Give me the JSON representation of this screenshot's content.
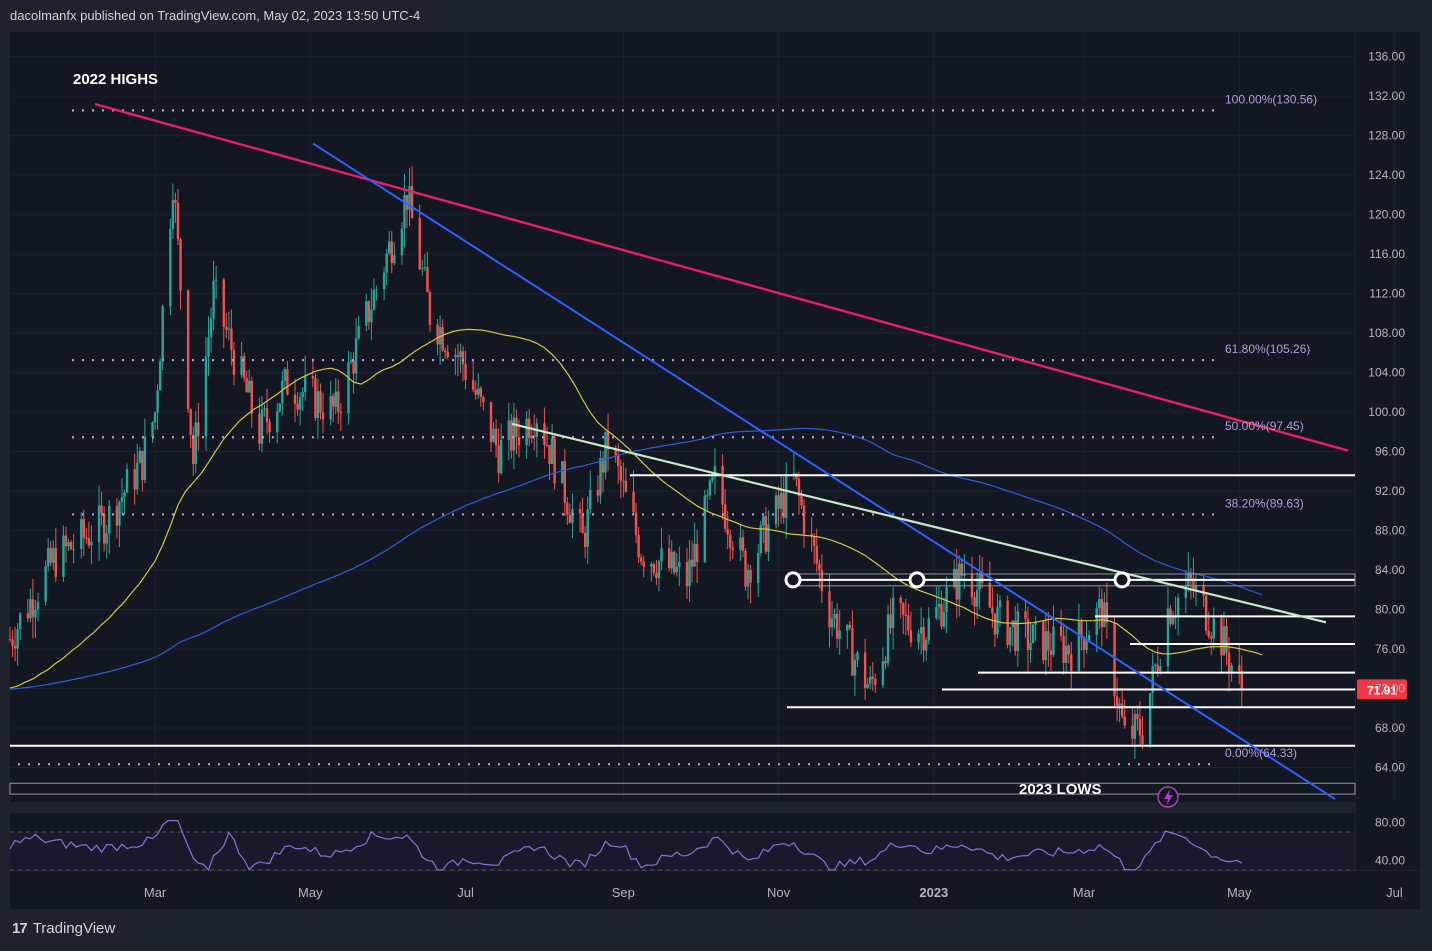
{
  "header": {
    "text": "dacolmanfx published on TradingView.com, May 02, 2023 13:50 UTC-4"
  },
  "footer": {
    "logo": "17",
    "brand": "TradingView"
  },
  "colors": {
    "background": "#131722",
    "frame": "#1e222d",
    "up": "#26a69a",
    "down": "#ef5350",
    "fib": "#b39ddb",
    "pink_trend": "#e91e63",
    "blue_trend": "#2962ff",
    "green_trend": "#c8e6c9",
    "ma50": "#d4c840",
    "ma200": "#2f5bd8",
    "rsi": "#8b6fd6",
    "last_price_bg": "#f23645"
  },
  "chart_data": {
    "type": "candlestick",
    "symbol_note": "",
    "price_axis": {
      "ticks": [
        "136.00",
        "132.00",
        "128.00",
        "124.00",
        "120.00",
        "116.00",
        "112.00",
        "108.00",
        "104.00",
        "100.00",
        "96.00",
        "92.00",
        "88.00",
        "84.00",
        "80.00",
        "76.00",
        "72.00",
        "68.00",
        "64.00"
      ],
      "range": [
        60.5,
        138.5
      ]
    },
    "time_axis": {
      "ticks": [
        "Mar",
        "May",
        "Jul",
        "Sep",
        "Nov",
        "2023",
        "Mar",
        "May",
        "Jul"
      ]
    },
    "last_price": "71.91",
    "annotations": {
      "highs": "2022 HIGHS",
      "lows": "2023 LOWS"
    },
    "fib_levels": [
      {
        "label": "100.00%(130.56)",
        "value": 130.56
      },
      {
        "label": "61.80%(105.26)",
        "value": 105.26
      },
      {
        "label": "50.00%(97.45)",
        "value": 97.45
      },
      {
        "label": "38.20%(89.63)",
        "value": 89.63
      },
      {
        "label": "0.00%(64.33)",
        "value": 64.33
      }
    ],
    "horizontal_levels": [
      93.6,
      83.0,
      79.3,
      76.5,
      73.6,
      71.9,
      70.1,
      66.2
    ],
    "close_path": [
      [
        "2022-01-03",
        77.0
      ],
      [
        "2022-01-20",
        85.0
      ],
      [
        "2022-02-10",
        89.0
      ],
      [
        "2022-02-24",
        95.0
      ],
      [
        "2022-03-01",
        100.0
      ],
      [
        "2022-03-08",
        123.7
      ],
      [
        "2022-03-16",
        95.0
      ],
      [
        "2022-03-24",
        112.0
      ],
      [
        "2022-04-11",
        98.0
      ],
      [
        "2022-04-22",
        103.0
      ],
      [
        "2022-05-11",
        100.0
      ],
      [
        "2022-05-30",
        115.0
      ],
      [
        "2022-06-08",
        122.0
      ],
      [
        "2022-06-17",
        110.0
      ],
      [
        "2022-06-30",
        105.0
      ],
      [
        "2022-07-14",
        96.0
      ],
      [
        "2022-07-29",
        100.0
      ],
      [
        "2022-08-16",
        87.0
      ],
      [
        "2022-08-26",
        97.0
      ],
      [
        "2022-09-08",
        86.0
      ],
      [
        "2022-09-26",
        83.0
      ],
      [
        "2022-10-07",
        93.0
      ],
      [
        "2022-10-19",
        84.0
      ],
      [
        "2022-11-07",
        93.0
      ],
      [
        "2022-11-21",
        80.0
      ],
      [
        "2022-12-07",
        72.0
      ],
      [
        "2022-12-16",
        79.0
      ],
      [
        "2022-12-29",
        78.0
      ],
      [
        "2023-01-13",
        84.0
      ],
      [
        "2023-01-26",
        79.0
      ],
      [
        "2023-02-07",
        77.0
      ],
      [
        "2023-02-24",
        76.0
      ],
      [
        "2023-03-08",
        80.0
      ],
      [
        "2023-03-17",
        67.0
      ],
      [
        "2023-03-24",
        68.0
      ],
      [
        "2023-04-03",
        80.0
      ],
      [
        "2023-04-12",
        82.5
      ],
      [
        "2023-04-24",
        77.0
      ],
      [
        "2023-05-02",
        71.9
      ]
    ],
    "rsi": {
      "ticks": [
        "80.00",
        "40.00"
      ],
      "range": [
        30,
        90
      ]
    }
  }
}
